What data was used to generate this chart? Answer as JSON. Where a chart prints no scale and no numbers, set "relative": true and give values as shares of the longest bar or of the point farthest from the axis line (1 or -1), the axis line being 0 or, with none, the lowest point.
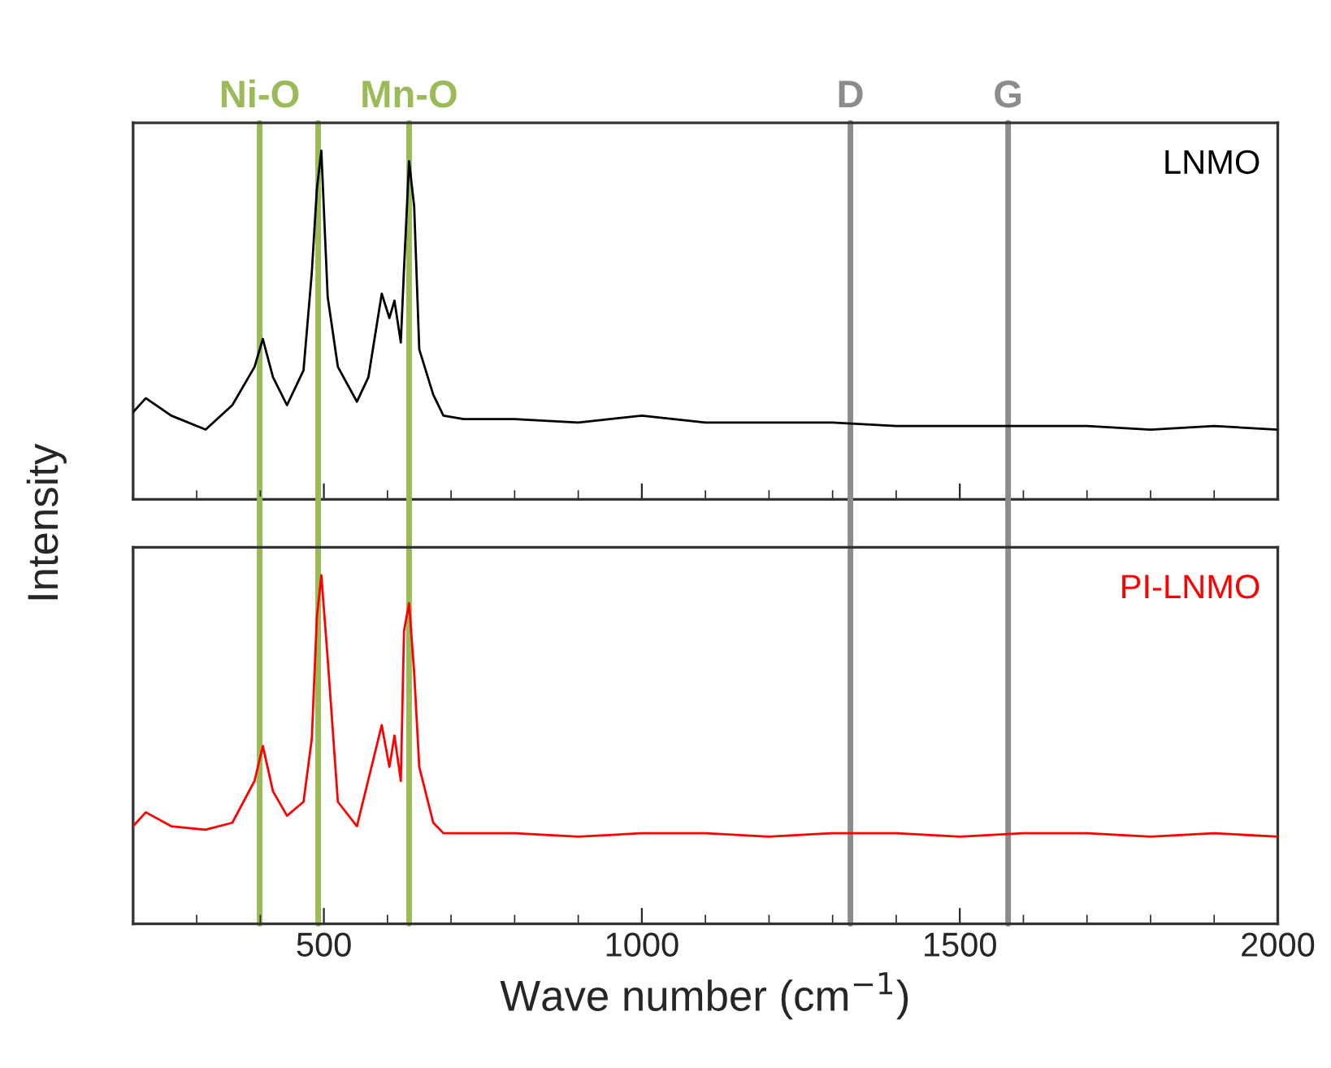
{
  "chart_data": [
    {
      "type": "line",
      "relative": true,
      "ylabel": "Intensity",
      "xlim": [
        200,
        2000
      ],
      "xticks": [
        500,
        1000,
        1500,
        2000
      ],
      "tick_labels": false,
      "grid": false,
      "legend": false,
      "series": [
        {
          "name": "LNMO",
          "color": "#000000",
          "x": [
            200,
            220,
            260,
            314,
            356,
            391,
            404,
            420,
            442,
            468,
            481,
            489,
            496,
            506,
            522,
            552,
            570,
            591,
            603,
            611,
            621,
            626,
            634,
            642,
            650,
            672,
            688,
            720,
            800,
            900,
            1000,
            1100,
            1200,
            1300,
            1400,
            1500,
            1600,
            1700,
            1800,
            1900,
            2000
          ],
          "values": [
            0.25,
            0.29,
            0.24,
            0.2,
            0.27,
            0.38,
            0.46,
            0.35,
            0.27,
            0.37,
            0.65,
            0.89,
            1.0,
            0.58,
            0.38,
            0.28,
            0.35,
            0.59,
            0.52,
            0.57,
            0.45,
            0.66,
            0.97,
            0.84,
            0.43,
            0.3,
            0.24,
            0.23,
            0.23,
            0.22,
            0.24,
            0.22,
            0.22,
            0.22,
            0.21,
            0.21,
            0.21,
            0.21,
            0.2,
            0.21,
            0.2
          ]
        }
      ],
      "ref_lines": [
        {
          "axis": "x",
          "value": 399,
          "label": "Ni-O",
          "color": "#9bbb59"
        },
        {
          "axis": "x",
          "value": 491,
          "color": "#9bbb59"
        },
        {
          "axis": "x",
          "value": 634,
          "label": "Mn-O",
          "color": "#9bbb59"
        },
        {
          "axis": "x",
          "value": 1328,
          "label": "D",
          "color": "#8c8c8c"
        },
        {
          "axis": "x",
          "value": 1576,
          "label": "G",
          "color": "#8c8c8c"
        }
      ]
    },
    {
      "type": "line",
      "relative": true,
      "xlabel": "Wave number (cm$^{−1}$)",
      "xlim": [
        200,
        2000
      ],
      "xticks": [
        500,
        1000,
        1500,
        2000
      ],
      "tick_labels": "x",
      "grid": false,
      "legend": false,
      "series": [
        {
          "name": "PI-LNMO",
          "color": "#ff0000",
          "x": [
            200,
            220,
            260,
            314,
            356,
            391,
            404,
            420,
            442,
            468,
            481,
            489,
            496,
            506,
            522,
            552,
            591,
            603,
            611,
            621,
            626,
            634,
            642,
            650,
            672,
            688,
            720,
            800,
            900,
            1000,
            1100,
            1200,
            1300,
            1400,
            1500,
            1600,
            1700,
            1800,
            1900,
            2000
          ],
          "values": [
            0.28,
            0.32,
            0.28,
            0.27,
            0.29,
            0.41,
            0.51,
            0.38,
            0.31,
            0.35,
            0.53,
            0.88,
            1.0,
            0.76,
            0.35,
            0.28,
            0.57,
            0.45,
            0.54,
            0.41,
            0.84,
            0.92,
            0.72,
            0.45,
            0.29,
            0.26,
            0.26,
            0.26,
            0.25,
            0.26,
            0.26,
            0.25,
            0.26,
            0.26,
            0.25,
            0.26,
            0.26,
            0.25,
            0.26,
            0.25
          ]
        }
      ],
      "ref_lines": [
        {
          "axis": "x",
          "value": 399,
          "color": "#9bbb59"
        },
        {
          "axis": "x",
          "value": 491,
          "color": "#9bbb59"
        },
        {
          "axis": "x",
          "value": 634,
          "color": "#9bbb59"
        },
        {
          "axis": "x",
          "value": 1328,
          "color": "#8c8c8c"
        },
        {
          "axis": "x",
          "value": 1576,
          "color": "#8c8c8c"
        }
      ]
    }
  ]
}
